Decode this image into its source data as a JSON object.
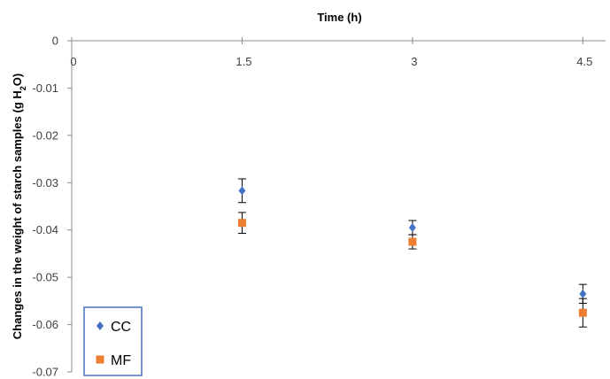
{
  "chart_data": {
    "type": "scatter",
    "title": "",
    "xlabel": "Time (h)",
    "ylabel": "Changes in the weight of starch samples (g H2O)",
    "ylabel_parts": {
      "before": "Changes in the weight of starch samples (g H",
      "sub": "2",
      "after": "O)"
    },
    "x_axis_position": "top",
    "xlim": [
      0,
      4.7
    ],
    "ylim": [
      -0.07,
      0
    ],
    "x_ticks": [
      {
        "value": 0,
        "label": "0"
      },
      {
        "value": 1.5,
        "label": "1.5"
      },
      {
        "value": 3,
        "label": "3"
      },
      {
        "value": 4.5,
        "label": "4.5"
      }
    ],
    "y_ticks": [
      {
        "value": 0,
        "label": "0"
      },
      {
        "value": -0.01,
        "label": "-0.01"
      },
      {
        "value": -0.02,
        "label": "-0.02"
      },
      {
        "value": -0.03,
        "label": "-0.03"
      },
      {
        "value": -0.04,
        "label": "-0.04"
      },
      {
        "value": -0.05,
        "label": "-0.05"
      },
      {
        "value": -0.06,
        "label": "-0.06"
      },
      {
        "value": -0.07,
        "label": "-0.07"
      }
    ],
    "grid": false,
    "legend_position": "bottom-left",
    "series": [
      {
        "name": "CC",
        "marker": "diamond",
        "color": "#4472C4",
        "points": [
          {
            "x": 1.5,
            "y": -0.0317,
            "err": 0.0025
          },
          {
            "x": 3,
            "y": -0.0395,
            "err": 0.0015
          },
          {
            "x": 4.5,
            "y": -0.0535,
            "err": 0.002
          }
        ]
      },
      {
        "name": "MF",
        "marker": "square",
        "color": "#ED7D31",
        "points": [
          {
            "x": 1.5,
            "y": -0.0385,
            "err": 0.0022
          },
          {
            "x": 3,
            "y": -0.0425,
            "err": 0.0015
          },
          {
            "x": 4.5,
            "y": -0.0575,
            "err": 0.003
          }
        ]
      }
    ]
  }
}
